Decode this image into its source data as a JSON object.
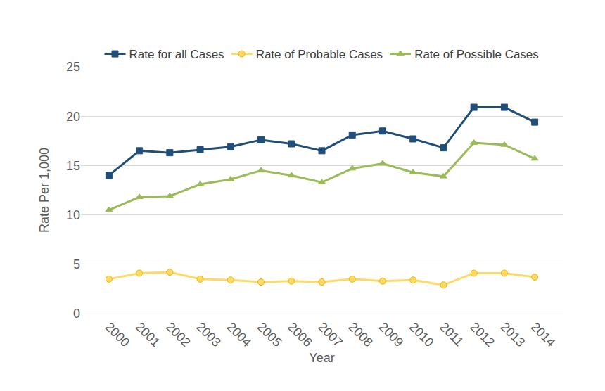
{
  "chart_data": {
    "type": "line",
    "x_label": "Year",
    "y_label": "Rate Per 1,000",
    "categories": [
      "2000",
      "2001",
      "2002",
      "2003",
      "2004",
      "2005",
      "2006",
      "2007",
      "2008",
      "2009",
      "2010",
      "2011",
      "2012",
      "2013",
      "2014"
    ],
    "series": [
      {
        "name": "Rate for all Cases",
        "color": "#1f4e79",
        "marker": "square",
        "line_style": "solid",
        "values": [
          14.0,
          16.5,
          16.3,
          16.6,
          16.9,
          17.6,
          17.2,
          16.5,
          18.1,
          18.5,
          17.7,
          16.8,
          20.9,
          20.9,
          19.4
        ]
      },
      {
        "name": "Rate of Probable Cases",
        "color": "#ffd966",
        "marker": "circle",
        "line_style": "solid",
        "values": [
          3.5,
          4.1,
          4.2,
          3.5,
          3.4,
          3.2,
          3.3,
          3.2,
          3.5,
          3.3,
          3.4,
          2.9,
          4.1,
          4.1,
          3.7
        ]
      },
      {
        "name": "Rate of Possible Cases",
        "color": "#9bbb59",
        "marker": "triangle",
        "line_style": "solid",
        "values": [
          10.5,
          11.8,
          11.9,
          13.1,
          13.6,
          14.5,
          14.0,
          13.3,
          14.7,
          15.2,
          14.3,
          13.9,
          17.3,
          17.1,
          15.7
        ]
      }
    ],
    "ylim": [
      0,
      25
    ],
    "yticks": [
      0,
      5,
      10,
      15,
      20,
      25
    ],
    "grid": true,
    "legend": "top"
  }
}
